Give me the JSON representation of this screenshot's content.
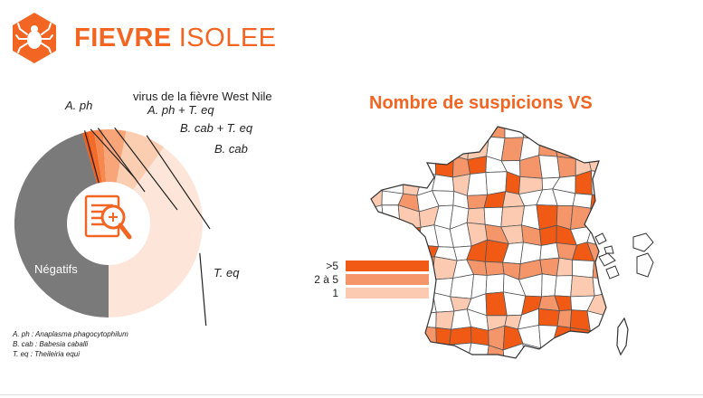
{
  "header": {
    "title_bold": "FIEVRE",
    "title_light": "ISOLEE",
    "logo_icon": "tick-icon",
    "accent_color": "#f26522"
  },
  "chart_data": [
    {
      "type": "pie",
      "variant": "donut",
      "center_icon": "document-magnifier-icon",
      "slices": [
        {
          "label": "Négatifs",
          "value": 45.5,
          "color": "#7a7a7a"
        },
        {
          "label": "A. ph",
          "value": 1.0,
          "color": "#f05a14"
        },
        {
          "label": "virus de la fièvre West Nile",
          "value": 1.0,
          "color": "#f26b2a"
        },
        {
          "label": "A. ph + T. eq",
          "value": 1.5,
          "color": "#f5894f"
        },
        {
          "label": "B. cab + T. eq",
          "value": 4.0,
          "color": "#f8a679"
        },
        {
          "label": "B. cab",
          "value": 7.0,
          "color": "#fbcdb1"
        },
        {
          "label": "T. eq",
          "value": 40.0,
          "color": "#fde6d9"
        }
      ]
    },
    {
      "type": "choropleth",
      "title": "Nombre de suspicions VS",
      "legend": [
        {
          "label": ">5",
          "color": "#f05a14"
        },
        {
          "label": "2 à 5",
          "color": "#f5956a"
        },
        {
          "label": "1",
          "color": "#fbcab0"
        }
      ]
    }
  ],
  "footnotes": [
    "A. ph : Anaplasma phagocytophilum",
    "B. cab : Babesia caballi",
    "T. eq : Theileiria equi"
  ]
}
